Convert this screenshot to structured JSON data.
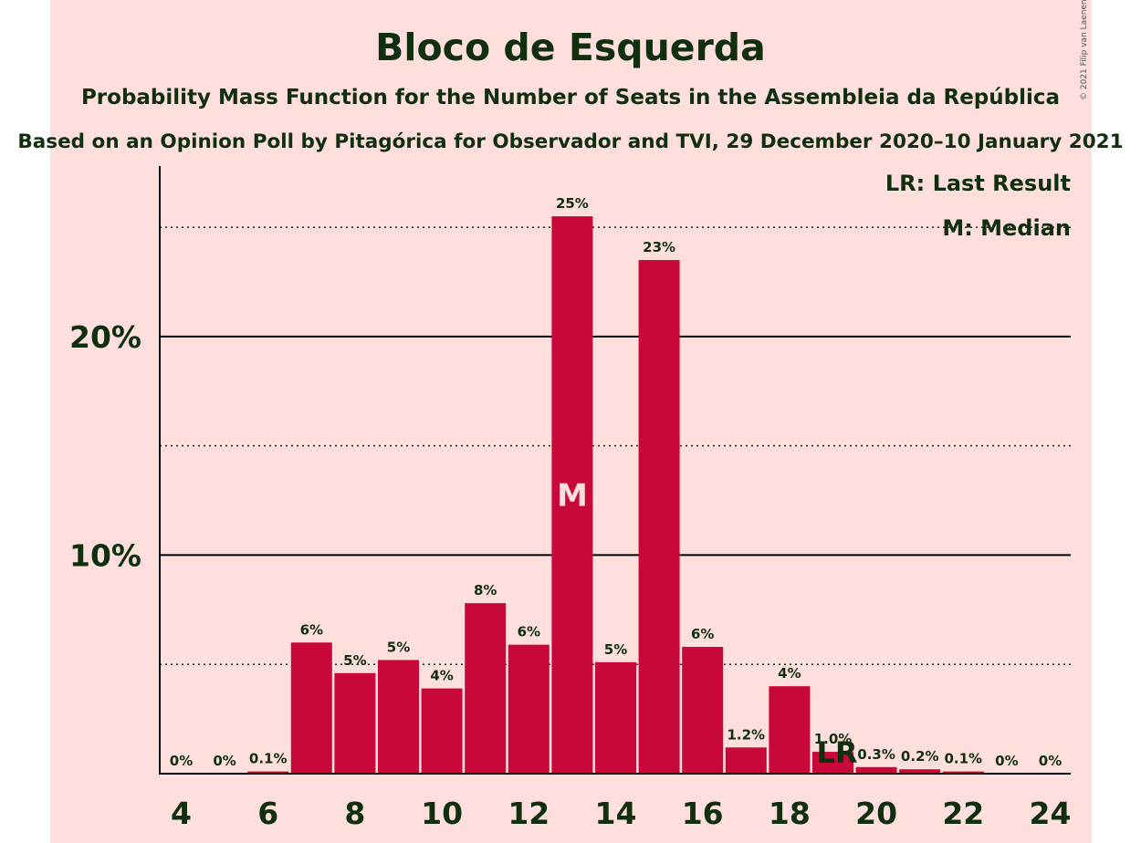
{
  "chart_data": {
    "type": "bar",
    "title": "Bloco de Esquerda",
    "subtitle": "Probability Mass Function for the Number of Seats in the Assembleia da República",
    "subtitle2": "Based on an Opinion Poll by Pitagórica for Observador and TVI, 29 December 2020–10 January 2021",
    "credit": "© 2021 Filip van Laenen",
    "x": [
      4,
      5,
      6,
      7,
      8,
      9,
      10,
      11,
      12,
      13,
      14,
      15,
      16,
      17,
      18,
      19,
      20,
      21,
      22,
      23,
      24
    ],
    "values": [
      0,
      0,
      0.1,
      6.0,
      4.6,
      5.2,
      3.9,
      7.8,
      5.9,
      25.5,
      5.1,
      23.5,
      5.8,
      1.2,
      4.0,
      1.0,
      0.3,
      0.2,
      0.1,
      0,
      0
    ],
    "value_labels": [
      "0%",
      "0%",
      "0.1%",
      "6%",
      "5%",
      "5%",
      "4%",
      "8%",
      "6%",
      "25%",
      "5%",
      "23%",
      "6%",
      "1.2%",
      "4%",
      "1.0%",
      "0.3%",
      "0.2%",
      "0.1%",
      "0%",
      "0%"
    ],
    "xticks": [
      4,
      6,
      8,
      10,
      12,
      14,
      16,
      18,
      20,
      22,
      24
    ],
    "ytick_labels": [
      {
        "value": 10,
        "label": "10%"
      },
      {
        "value": 20,
        "label": "20%"
      }
    ],
    "dotted_gridlines": [
      5,
      15,
      25
    ],
    "ylim": [
      0,
      27.8
    ],
    "median_seat": 13,
    "median_marker": "M",
    "last_result_seat": 19,
    "last_result_marker": "LR",
    "legend": [
      "LR: Last Result",
      "M: Median"
    ],
    "legend_position": "top-right",
    "colors": {
      "bar": "#c8083a",
      "background": "#ffdede",
      "text": "#0f2f0f",
      "median_marker": "#ffdede"
    }
  }
}
